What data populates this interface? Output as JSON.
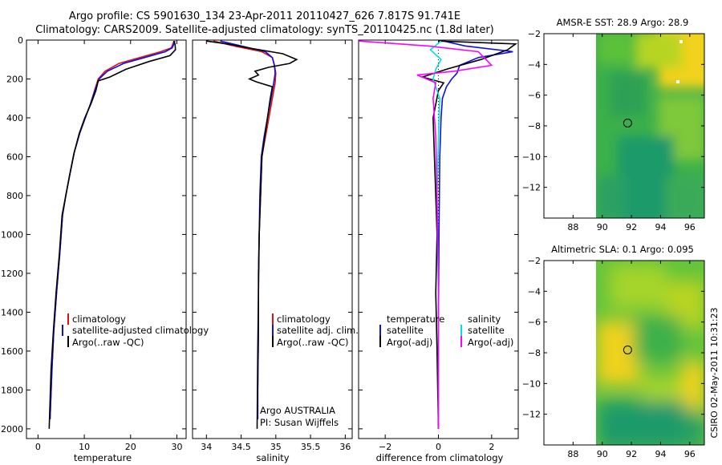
{
  "figure": {
    "title_line1": "Argo profile: CS 5901630_134 23-Apr-2011 20110427_626 7.817S 91.741E",
    "title_line2": "Climatology: CARS2009. Satellite-adjusted climatology: synTS_20110425.nc (1.8d later)",
    "side_stamp": "CSIRO 02-May-2011 10:31:23"
  },
  "colors": {
    "climatology": "#e01010",
    "satellite": "#1010e0",
    "argo": "#000000",
    "sal_satellite": "#00e0e0",
    "sal_argo": "#ff00ff"
  },
  "chart_data": [
    {
      "id": "temperature",
      "type": "line",
      "xlabel": "temperature",
      "xlim": [
        -2.5,
        32
      ],
      "ylim": [
        2050,
        0
      ],
      "xticks": [
        0,
        10,
        20,
        30
      ],
      "yticks": [
        0,
        200,
        400,
        600,
        800,
        1000,
        1200,
        1400,
        1600,
        1800,
        2000
      ],
      "legend": [
        "climatology",
        "satellite-adjusted climatology",
        "Argo(..raw -QC)"
      ],
      "series": [
        {
          "name": "climatology",
          "color": "#e01010",
          "x": [
            29.4,
            28.8,
            26.5,
            22.0,
            17.5,
            14.5,
            13.0,
            12.2,
            11.3,
            10.2,
            9.0,
            7.8,
            6.8,
            6.0,
            5.3,
            4.7,
            4.0,
            3.4,
            3.0,
            2.6
          ],
          "y": [
            5,
            40,
            60,
            90,
            120,
            160,
            200,
            260,
            330,
            400,
            480,
            580,
            700,
            800,
            900,
            1100,
            1300,
            1500,
            1700,
            1950
          ]
        },
        {
          "name": "satellite-adjusted climatology",
          "color": "#1010e0",
          "x": [
            29.6,
            29.0,
            27.5,
            23.0,
            18.5,
            15.0,
            13.2,
            12.3,
            11.3,
            10.2,
            9.0,
            7.8,
            6.8,
            6.0,
            5.3,
            4.7,
            4.0,
            3.4,
            3.0,
            2.6
          ],
          "y": [
            5,
            40,
            60,
            90,
            120,
            160,
            200,
            260,
            330,
            400,
            480,
            580,
            700,
            800,
            900,
            1100,
            1300,
            1500,
            1700,
            1950
          ]
        },
        {
          "name": "Argo(..raw -QC)",
          "color": "#000000",
          "x": [
            29.3,
            29.6,
            29.7,
            28.5,
            24.0,
            19.0,
            15.5,
            13.0,
            12.5,
            11.4,
            10.1,
            8.9,
            7.8,
            6.8,
            6.0,
            5.2,
            4.6,
            3.9,
            3.3,
            2.8,
            2.4
          ],
          "y": [
            5,
            20,
            50,
            80,
            110,
            150,
            190,
            210,
            260,
            330,
            400,
            480,
            580,
            700,
            800,
            900,
            1100,
            1300,
            1500,
            1700,
            2000
          ]
        }
      ]
    },
    {
      "id": "salinity",
      "type": "line",
      "xlabel": "salinity",
      "xlim": [
        33.8,
        36.1
      ],
      "ylim": [
        2050,
        0
      ],
      "xticks": [
        34,
        34.5,
        35,
        35.5,
        36
      ],
      "legend": [
        "climatology",
        "satellite adj. clim.",
        "Argo(..raw -QC)"
      ],
      "annotation": [
        "Argo AUSTRALIA",
        "PI: Susan Wijffels"
      ],
      "series": [
        {
          "name": "climatology",
          "color": "#e01010",
          "x": [
            34.1,
            34.4,
            34.8,
            34.95,
            34.98,
            35.0,
            34.99,
            34.95,
            34.9,
            34.85,
            34.8,
            34.78,
            34.76,
            34.75,
            34.75,
            34.74,
            34.74
          ],
          "y": [
            5,
            30,
            60,
            90,
            130,
            170,
            220,
            300,
            400,
            500,
            600,
            800,
            1000,
            1200,
            1500,
            1800,
            1950
          ]
        },
        {
          "name": "satellite adj. clim.",
          "color": "#1010e0",
          "x": [
            34.2,
            34.5,
            34.85,
            34.95,
            34.98,
            34.99,
            34.97,
            34.93,
            34.88,
            34.83,
            34.79,
            34.77,
            34.76,
            34.75,
            34.75,
            34.74,
            34.74
          ],
          "y": [
            5,
            30,
            60,
            90,
            130,
            170,
            220,
            300,
            400,
            500,
            600,
            800,
            1000,
            1200,
            1500,
            1800,
            1950
          ]
        },
        {
          "name": "Argo(..raw -QC)",
          "color": "#000000",
          "x": [
            34.0,
            34.3,
            34.6,
            35.1,
            35.3,
            35.2,
            34.9,
            34.7,
            34.75,
            34.62,
            34.72,
            34.95,
            34.92,
            34.88,
            34.84,
            34.8,
            34.78,
            34.76,
            34.75,
            34.74,
            34.73
          ],
          "y": [
            5,
            20,
            40,
            70,
            100,
            120,
            140,
            160,
            180,
            200,
            215,
            240,
            300,
            400,
            500,
            600,
            800,
            1000,
            1300,
            1600,
            2000
          ]
        }
      ]
    },
    {
      "id": "difference",
      "type": "line",
      "xlabel": "difference from climatology",
      "xlim": [
        -3,
        3
      ],
      "ylim": [
        2050,
        0
      ],
      "xticks": [
        -2,
        0,
        2
      ],
      "legend_temperature": {
        "heading": "temperature",
        "items": [
          "satellite",
          "Argo(-adj)"
        ]
      },
      "legend_salinity": {
        "heading": "salinity",
        "items": [
          "satellite",
          "Argo(-adj)"
        ]
      },
      "series": [
        {
          "name": "temperature satellite",
          "color": "#1010e0",
          "x": [
            0.2,
            1.0,
            2.8,
            1.5,
            0.8,
            0.7,
            0.5,
            0.3,
            0.15,
            0.1,
            0.05,
            0.02,
            0.0,
            0.0
          ],
          "y": [
            5,
            30,
            60,
            90,
            130,
            170,
            200,
            240,
            300,
            400,
            600,
            1000,
            1500,
            1950
          ]
        },
        {
          "name": "temperature Argo(-adj)",
          "color": "#000000",
          "x": [
            0.0,
            2.9,
            2.6,
            1.6,
            0.3,
            -0.6,
            0.2,
            0.0,
            -0.2,
            -0.15,
            -0.1,
            -0.05,
            -0.1,
            -0.05,
            0.0
          ],
          "y": [
            5,
            20,
            50,
            100,
            150,
            190,
            220,
            260,
            400,
            600,
            800,
            1000,
            1300,
            1600,
            2000
          ]
        },
        {
          "name": "salinity satellite",
          "color": "#00e0e0",
          "x": [
            0.1,
            -0.3,
            0.1,
            -0.1,
            -0.2,
            0.05,
            0.0,
            -0.05,
            0.0,
            0.0
          ],
          "y": [
            5,
            50,
            100,
            150,
            200,
            300,
            500,
            800,
            1300,
            1950
          ]
        },
        {
          "name": "salinity Argo(-adj)",
          "color": "#ff00ff",
          "x": [
            -3.0,
            -0.4,
            1.5,
            2.0,
            0.6,
            -0.8,
            -0.1,
            -0.2,
            -0.1,
            -0.05,
            0.0,
            0.0
          ],
          "y": [
            5,
            30,
            60,
            130,
            160,
            180,
            220,
            300,
            500,
            800,
            1200,
            2000
          ]
        }
      ]
    },
    {
      "id": "sst_map",
      "type": "heatmap",
      "title": "AMSR-E SST: 28.9 Argo: 28.9",
      "xlim": [
        86,
        97
      ],
      "ylim": [
        -14,
        -2
      ],
      "xticks": [
        88,
        90,
        92,
        94,
        96
      ],
      "yticks": [
        -2,
        -4,
        -6,
        -8,
        -10,
        -12
      ],
      "data_lon_min": 90,
      "argo_lon": 91.741,
      "argo_lat": -7.817
    },
    {
      "id": "sla_map",
      "type": "heatmap",
      "title": "Altimetric SLA: 0.1 Argo: 0.095",
      "xlim": [
        86,
        97
      ],
      "ylim": [
        -14,
        -2
      ],
      "xticks": [
        88,
        90,
        92,
        94,
        96
      ],
      "yticks": [
        -2,
        -4,
        -6,
        -8,
        -10,
        -12
      ],
      "data_lon_min": 90,
      "argo_lon": 91.741,
      "argo_lat": -7.817
    }
  ]
}
